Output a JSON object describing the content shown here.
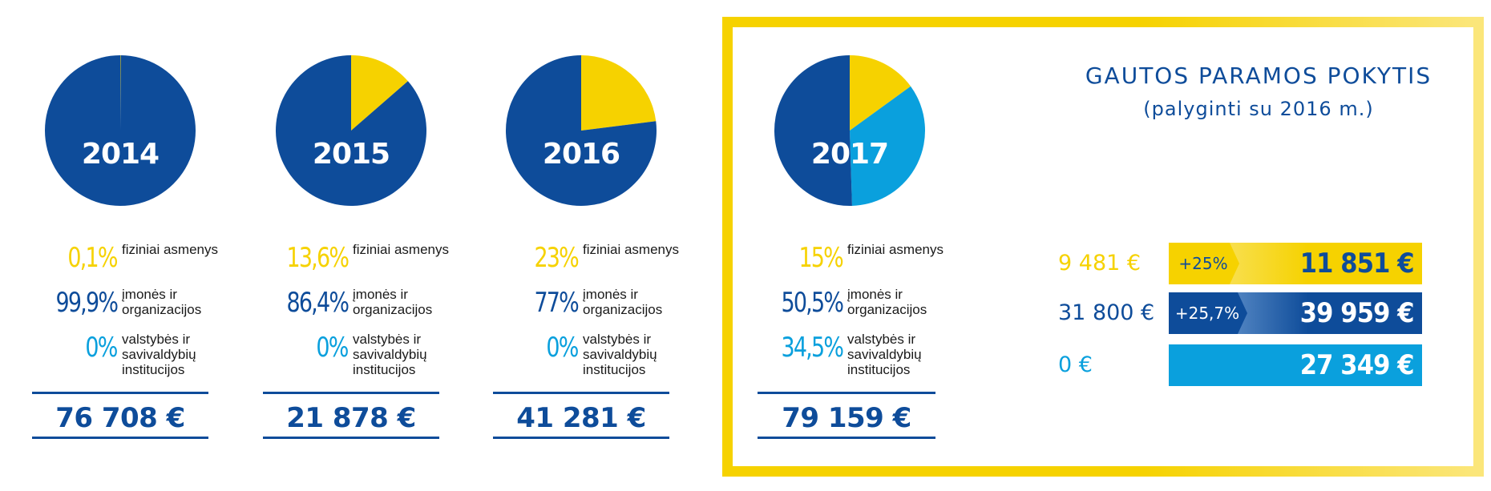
{
  "colors": {
    "individuals": "#f6d200",
    "companies": "#0e4c9a",
    "institutions": "#0aa0dd"
  },
  "labels": {
    "individuals": "fiziniai asmenys",
    "companies": "įmonės ir organizacijos",
    "institutions": "valstybės ir savivaldybių institucijos"
  },
  "years": [
    {
      "year": "2014",
      "shares": {
        "individuals": "0,1%",
        "companies": "99,9%",
        "institutions": "0%"
      },
      "total": "76 708 €"
    },
    {
      "year": "2015",
      "shares": {
        "individuals": "13,6%",
        "companies": "86,4%",
        "institutions": "0%"
      },
      "total": "21 878 €"
    },
    {
      "year": "2016",
      "shares": {
        "individuals": "23%",
        "companies": "77%",
        "institutions": "0%"
      },
      "total": "41 281 €"
    },
    {
      "year": "2017",
      "shares": {
        "individuals": "15%",
        "companies": "50,5%",
        "institutions": "34,5%"
      },
      "total": "79 159 €"
    }
  ],
  "change_panel": {
    "title": "GAUTOS PARAMOS POKYTIS",
    "subtitle": "(palyginti su 2016 m.)",
    "rows": [
      {
        "prev": "9 481 €",
        "badge": "+25%",
        "current": "11 851 €",
        "color": "#f6d200"
      },
      {
        "prev": "31 800 €",
        "badge": "+25,7%",
        "current": "39 959 €",
        "color": "#0e4c9a"
      },
      {
        "prev": "0 €",
        "badge": "",
        "current": "27 349 €",
        "color": "#0aa0dd"
      }
    ]
  },
  "chart_data": [
    {
      "type": "pie",
      "title": "2014",
      "categories": [
        "fiziniai asmenys",
        "įmonės ir organizacijos",
        "valstybės ir savivaldybių institucijos"
      ],
      "values": [
        0.1,
        99.9,
        0
      ]
    },
    {
      "type": "pie",
      "title": "2015",
      "categories": [
        "fiziniai asmenys",
        "įmonės ir organizacijos",
        "valstybės ir savivaldybių institucijos"
      ],
      "values": [
        13.6,
        86.4,
        0
      ]
    },
    {
      "type": "pie",
      "title": "2016",
      "categories": [
        "fiziniai asmenys",
        "įmonės ir organizacijos",
        "valstybės ir savivaldybių institucijos"
      ],
      "values": [
        23,
        77,
        0
      ]
    },
    {
      "type": "pie",
      "title": "2017",
      "categories": [
        "fiziniai asmenys",
        "įmonės ir organizacijos",
        "valstybės ir savivaldybių institucijos"
      ],
      "values": [
        15,
        50.5,
        34.5
      ]
    },
    {
      "type": "bar",
      "title": "GAUTOS PARAMOS POKYTIS",
      "categories": [
        "fiziniai asmenys",
        "įmonės ir organizacijos",
        "valstybės ir savivaldybių institucijos"
      ],
      "series": [
        {
          "values": [
            9481,
            31800,
            0
          ]
        },
        {
          "values": [
            11851,
            39959,
            27349
          ]
        }
      ],
      "changes": [
        "+25%",
        "+25,7%",
        ""
      ]
    }
  ]
}
